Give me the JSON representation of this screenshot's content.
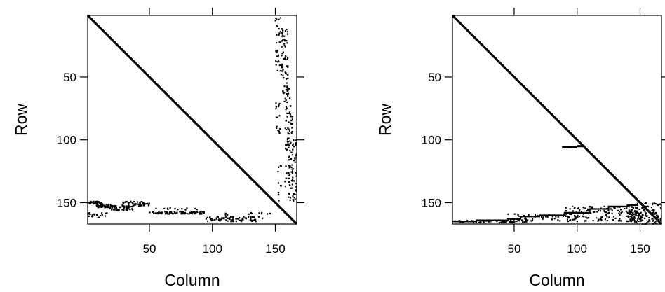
{
  "chart_data": [
    {
      "type": "scatter",
      "title": "",
      "xlabel": "Column",
      "ylabel": "Row",
      "xlim": [
        1,
        167
      ],
      "ylim": [
        167,
        1
      ],
      "y_reversed": true,
      "x_ticks": [
        50,
        100,
        150
      ],
      "y_ticks": [
        50,
        100,
        150
      ],
      "x_tick_labels": [
        "50",
        "100",
        "150"
      ],
      "y_tick_labels": [
        "50",
        "100",
        "150"
      ],
      "x_tick_labels_position": "bottom",
      "y_tick_labels_position": "left",
      "grid": false,
      "diagonal": [
        [
          1,
          1
        ],
        [
          167,
          167
        ]
      ],
      "marker_color": "#000000",
      "clusters": [
        {
          "x": [
            1,
            12
          ],
          "y": [
            149,
            151
          ],
          "n": 40
        },
        {
          "x": [
            8,
            22
          ],
          "y": [
            151,
            154
          ],
          "n": 40
        },
        {
          "x": [
            18,
            38
          ],
          "y": [
            152,
            156
          ],
          "n": 50
        },
        {
          "x": [
            28,
            50
          ],
          "y": [
            149,
            153
          ],
          "n": 50
        },
        {
          "x": [
            1,
            18
          ],
          "y": [
            158,
            162
          ],
          "n": 20
        },
        {
          "x": [
            50,
            95
          ],
          "y": [
            157,
            159
          ],
          "n": 80
        },
        {
          "x": [
            55,
            90
          ],
          "y": [
            154,
            156
          ],
          "n": 12
        },
        {
          "x": [
            95,
            135
          ],
          "y": [
            161,
            165
          ],
          "n": 80
        },
        {
          "x": [
            110,
            150
          ],
          "y": [
            158,
            163
          ],
          "n": 20
        },
        {
          "x": [
            150,
            156
          ],
          "y": [
            2,
            50
          ],
          "n": 40
        },
        {
          "x": [
            155,
            160
          ],
          "y": [
            10,
            50
          ],
          "n": 40
        },
        {
          "x": [
            156,
            162
          ],
          "y": [
            50,
            70
          ],
          "n": 25
        },
        {
          "x": [
            158,
            164
          ],
          "y": [
            70,
            110
          ],
          "n": 50
        },
        {
          "x": [
            160,
            167
          ],
          "y": [
            100,
            150
          ],
          "n": 60
        },
        {
          "x": [
            152,
            166
          ],
          "y": [
            120,
            150
          ],
          "n": 30
        },
        {
          "x": [
            150,
            154
          ],
          "y": [
            70,
            95
          ],
          "n": 15
        }
      ]
    },
    {
      "type": "scatter",
      "title": "",
      "xlabel": "Column",
      "ylabel": "Row",
      "xlim": [
        1,
        167
      ],
      "ylim": [
        167,
        1
      ],
      "y_reversed": true,
      "x_ticks": [
        50,
        100,
        150
      ],
      "y_ticks": [
        50,
        100,
        150
      ],
      "x_tick_labels": [
        "50",
        "100",
        "150"
      ],
      "y_tick_labels": [
        "50",
        "100",
        "150"
      ],
      "x_tick_labels_position": "bottom",
      "y_tick_labels_position": "left",
      "grid": false,
      "diagonal": [
        [
          1,
          1
        ],
        [
          167,
          167
        ]
      ],
      "marker_color": "#000000",
      "steps": [
        [
          1,
          165
        ],
        [
          20,
          164
        ],
        [
          45,
          163
        ],
        [
          55,
          161
        ],
        [
          70,
          160
        ],
        [
          90,
          158
        ],
        [
          110,
          155
        ],
        [
          125,
          153
        ],
        [
          140,
          152
        ],
        [
          148,
          150
        ]
      ],
      "segments": [
        {
          "x": [
            88,
            100
          ],
          "y": [
            106,
            106
          ]
        },
        {
          "x": [
            100,
            106
          ],
          "y": [
            105,
            105
          ]
        }
      ],
      "clusters": [
        {
          "x": [
            2,
            60
          ],
          "y": [
            164,
            166
          ],
          "n": 70
        },
        {
          "x": [
            45,
            95
          ],
          "y": [
            159,
            165
          ],
          "n": 45
        },
        {
          "x": [
            90,
            150
          ],
          "y": [
            153,
            165
          ],
          "n": 140
        },
        {
          "x": [
            140,
            167
          ],
          "y": [
            150,
            167
          ],
          "n": 150
        }
      ]
    }
  ]
}
